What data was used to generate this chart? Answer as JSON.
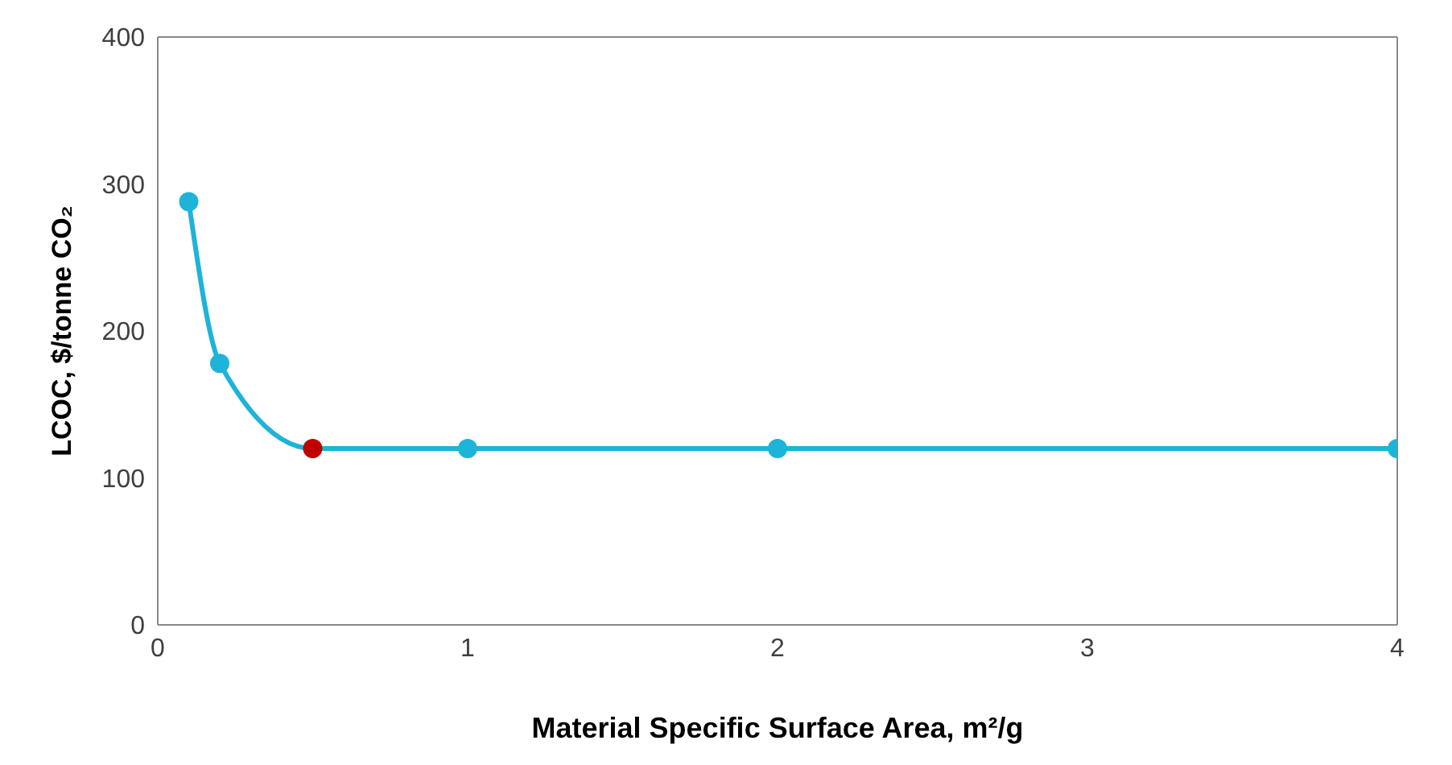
{
  "chart_data": {
    "type": "line",
    "xlabel": "Material Specific Surface Area, m²/g",
    "ylabel": "LCOC, $/tonne CO₂",
    "x": [
      0.1,
      0.2,
      0.5,
      1,
      2,
      4
    ],
    "series": [
      {
        "color": "#1eb3d9",
        "colors": [
          "#1eb3d9",
          "#1eb3d9",
          "#c00000",
          "#1eb3d9",
          "#1eb3d9",
          "#1eb3d9"
        ],
        "values": [
          288,
          178,
          120,
          120,
          120,
          120
        ]
      }
    ],
    "xlim": [
      0,
      4
    ],
    "xticks": [
      0,
      1,
      2,
      3,
      4
    ],
    "ylim": [
      0,
      400
    ],
    "yticks": [
      0,
      100,
      200,
      300,
      400
    ],
    "grid": false,
    "marker": "circle",
    "line_style": "solid"
  }
}
